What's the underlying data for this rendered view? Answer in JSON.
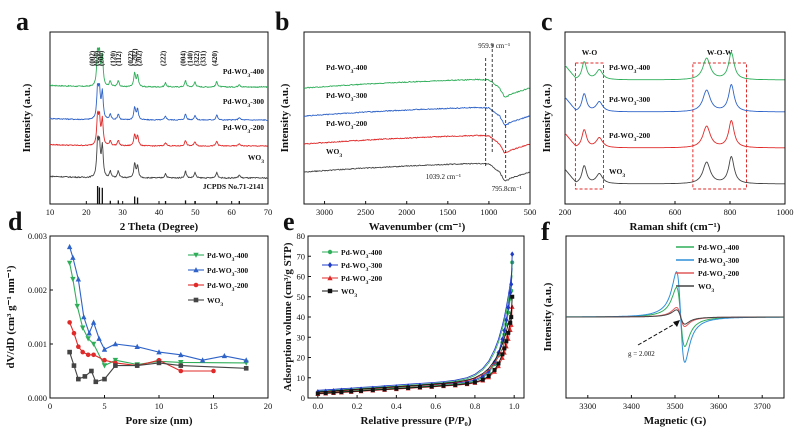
{
  "chart_data": [
    {
      "panel": "a",
      "type": "line",
      "xlabel": "2 Theta (Degree)",
      "ylabel": "Intensity (a.u.)",
      "xlim": [
        10,
        70
      ],
      "xticks": [
        10,
        20,
        30,
        40,
        50,
        60,
        70
      ],
      "series": [
        {
          "name": "Pd-WO3-400",
          "color": "#2fae59"
        },
        {
          "name": "Pd-WO3-300",
          "color": "#2f63c8"
        },
        {
          "name": "Pd-WO3-200",
          "color": "#e02a2a"
        },
        {
          "name": "WO3",
          "color": "#444444"
        }
      ],
      "reference_label": "JCPDS No.71-2141",
      "peaks": [
        {
          "pos": 23.1,
          "h": 1.0
        },
        {
          "pos": 23.6,
          "h": 0.92
        },
        {
          "pos": 24.4,
          "h": 0.9
        },
        {
          "pos": 26.6,
          "h": 0.18
        },
        {
          "pos": 28.8,
          "h": 0.2
        },
        {
          "pos": 33.3,
          "h": 0.42
        },
        {
          "pos": 34.1,
          "h": 0.36
        },
        {
          "pos": 41.8,
          "h": 0.13
        },
        {
          "pos": 47.3,
          "h": 0.2
        },
        {
          "pos": 49.9,
          "h": 0.16
        },
        {
          "pos": 55.9,
          "h": 0.17
        },
        {
          "pos": 62.1,
          "h": 0.09
        }
      ],
      "hkl_labels": [
        {
          "text": "(002)",
          "pos": 22.3
        },
        {
          "text": "(020)",
          "pos": 23.5
        },
        {
          "text": "(200)",
          "pos": 24.7
        },
        {
          "text": "(120)",
          "pos": 28.0
        },
        {
          "text": "(112)",
          "pos": 29.6
        },
        {
          "text": "(022)",
          "pos": 32.8
        },
        {
          "text": "(-202)",
          "pos": 34.0
        },
        {
          "text": "(202)",
          "pos": 35.2
        },
        {
          "text": "(222)",
          "pos": 41.8
        },
        {
          "text": "(004)",
          "pos": 47.3
        },
        {
          "text": "(140)",
          "pos": 49.2
        },
        {
          "text": "(322)",
          "pos": 51.0
        },
        {
          "text": "(331)",
          "pos": 52.8
        },
        {
          "text": "(420)",
          "pos": 55.9
        }
      ]
    },
    {
      "panel": "b",
      "type": "line",
      "xlabel": "Wavenumber (cm⁻¹)",
      "ylabel": "Intensity (a.u.)",
      "xlim": [
        3250,
        500
      ],
      "xticks": [
        3000,
        2500,
        2000,
        1500,
        1000,
        500
      ],
      "series": [
        {
          "name": "Pd-WO3-400",
          "color": "#2fae59"
        },
        {
          "name": "Pd-WO3-300",
          "color": "#2f63c8"
        },
        {
          "name": "Pd-WO3-200",
          "color": "#e02a2a"
        },
        {
          "name": "WO3",
          "color": "#444444"
        }
      ],
      "annotations": [
        "959.9 cm⁻¹",
        "1039.2 cm⁻¹",
        "795.8cm⁻¹"
      ],
      "marker_lines": [
        1039.2,
        959.9,
        795.8
      ]
    },
    {
      "panel": "c",
      "type": "line",
      "xlabel": "Raman shift (cm⁻¹)",
      "ylabel": "Intensity (a.u.)",
      "xlim": [
        200,
        1000
      ],
      "xticks": [
        200,
        400,
        600,
        800,
        1000
      ],
      "series": [
        {
          "name": "Pd-WO3-400",
          "color": "#2fae59"
        },
        {
          "name": "Pd-WO3-300",
          "color": "#2f63c8"
        },
        {
          "name": "Pd-WO3-200",
          "color": "#e02a2a"
        },
        {
          "name": "WO3",
          "color": "#444444"
        }
      ],
      "peaks": [
        270,
        325,
        715,
        805
      ],
      "boxes": [
        {
          "label": "W-O",
          "from": 238,
          "to": 340
        },
        {
          "label": "W-O-W",
          "from": 665,
          "to": 860
        }
      ]
    },
    {
      "panel": "d",
      "type": "line",
      "xlabel": "Pore size (nm)",
      "ylabel": "dV/dD (cm³ g⁻¹ nm⁻¹)",
      "xlim": [
        0,
        20
      ],
      "ylim": [
        0,
        0.003
      ],
      "xticks": [
        0,
        5,
        10,
        15,
        20
      ],
      "yticks": [
        "0.000",
        "0.001",
        "0.002",
        "0.003"
      ],
      "series": [
        {
          "name": "Pd-WO3-400",
          "color": "#2fae59",
          "marker": "tri-down",
          "x": [
            1.8,
            2.1,
            2.5,
            3.0,
            3.5,
            4.0,
            5.0,
            6.0,
            8.0,
            10.0,
            12.0,
            18.0
          ],
          "y": [
            0.0025,
            0.0022,
            0.0017,
            0.0013,
            0.0011,
            0.001,
            0.0006,
            0.0007,
            0.00062,
            0.00068,
            0.00066,
            0.00065
          ]
        },
        {
          "name": "Pd-WO3-300",
          "color": "#2f63c8",
          "marker": "triangle",
          "x": [
            1.8,
            2.1,
            2.6,
            3.1,
            3.6,
            4.0,
            4.5,
            5.0,
            6.0,
            8.0,
            10.0,
            12.0,
            14.0,
            16.0,
            18.0
          ],
          "y": [
            0.0028,
            0.0026,
            0.0022,
            0.0015,
            0.0012,
            0.0014,
            0.0011,
            0.0009,
            0.001,
            0.00095,
            0.00085,
            0.0008,
            0.0007,
            0.00078,
            0.0007
          ]
        },
        {
          "name": "Pd-WO3-200",
          "color": "#e02a2a",
          "marker": "circle",
          "x": [
            1.8,
            2.2,
            2.6,
            3.0,
            3.5,
            4.0,
            5.0,
            6.0,
            8.0,
            10.0,
            12.0,
            15.0
          ],
          "y": [
            0.0014,
            0.0012,
            0.00095,
            0.00085,
            0.0008,
            0.0008,
            0.0007,
            0.00065,
            0.0006,
            0.0007,
            0.0005,
            0.0005
          ]
        },
        {
          "name": "WO3",
          "color": "#444444",
          "marker": "square",
          "x": [
            1.8,
            2.2,
            2.6,
            3.2,
            3.8,
            4.2,
            5.0,
            6.0,
            8.0,
            10.0,
            12.0,
            18.0
          ],
          "y": [
            0.00085,
            0.0006,
            0.00035,
            0.0004,
            0.0005,
            0.0003,
            0.00035,
            0.0006,
            0.0006,
            0.00065,
            0.0006,
            0.00055
          ]
        }
      ]
    },
    {
      "panel": "e",
      "type": "scatter",
      "xlabel": "Relative pressure (P/P₀)",
      "ylabel": "Adsorption volume (cm³/g STP)",
      "xlim": [
        -0.05,
        1.05
      ],
      "ylim": [
        0,
        80
      ],
      "xticks": [
        "0.0",
        "0.2",
        "0.4",
        "0.6",
        "0.8",
        "1.0"
      ],
      "yticks": [
        0,
        10,
        20,
        30,
        40,
        50,
        60,
        70,
        80
      ],
      "series": [
        {
          "name": "Pd-WO3-400",
          "color": "#2fae59",
          "marker": "circle",
          "final": 67
        },
        {
          "name": "Pd-WO3-300",
          "color": "#1f3bc8",
          "marker": "diamond",
          "final": 71
        },
        {
          "name": "Pd-WO3-200",
          "color": "#e02a2a",
          "marker": "triangle",
          "final": 45
        },
        {
          "name": "WO3",
          "color": "#111111",
          "marker": "square",
          "final": 50
        }
      ]
    },
    {
      "panel": "f",
      "type": "line",
      "xlabel": "Magnetic (G)",
      "ylabel": "Intensity (a.u.)",
      "xlim": [
        3250,
        3750
      ],
      "xticks": [
        3300,
        3400,
        3500,
        3600,
        3700
      ],
      "series": [
        {
          "name": "Pd-WO3-400",
          "color": "#2fae59",
          "amp": 0.62
        },
        {
          "name": "Pd-WO3-300",
          "color": "#2f8fd8",
          "amp": 0.95
        },
        {
          "name": "Pd-WO3-200",
          "color": "#e05a5a",
          "amp": 0.2
        },
        {
          "name": "WO3",
          "color": "#444444",
          "amp": 0.15
        }
      ],
      "annotation": "g = 2.002"
    }
  ]
}
